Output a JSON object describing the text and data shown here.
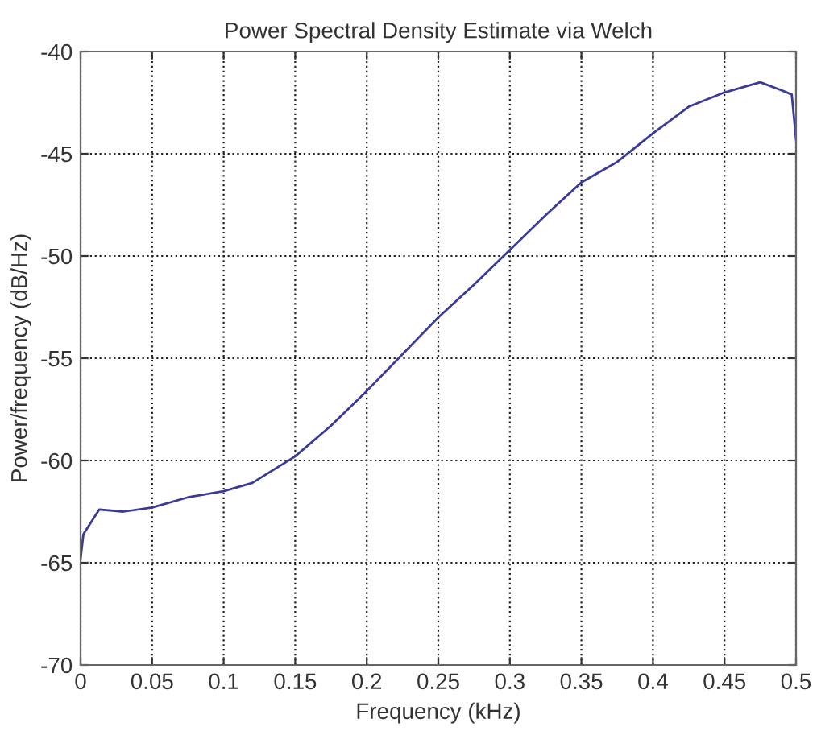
{
  "chart_data": {
    "type": "line",
    "title": "Power Spectral Density Estimate via Welch",
    "xlabel": "Frequency (kHz)",
    "ylabel": "Power/frequency (dB/Hz)",
    "x": [
      0,
      0.002,
      0.013,
      0.03,
      0.05,
      0.075,
      0.1,
      0.12,
      0.15,
      0.175,
      0.2,
      0.225,
      0.25,
      0.275,
      0.3,
      0.325,
      0.35,
      0.375,
      0.4,
      0.425,
      0.45,
      0.475,
      0.49,
      0.497,
      0.5
    ],
    "series": [
      {
        "color": "#3a3a9a",
        "values": [
          -64.8,
          -63.6,
          -62.4,
          -62.5,
          -62.3,
          -61.8,
          -61.5,
          -61.1,
          -59.8,
          -58.3,
          -56.6,
          -54.8,
          -53.0,
          -51.4,
          -49.7,
          -48.0,
          -46.4,
          -45.4,
          -44.0,
          -42.7,
          -42.0,
          -41.5,
          -41.9,
          -42.1,
          -44.3
        ]
      }
    ],
    "xlim": [
      0,
      0.5
    ],
    "ylim": [
      -70,
      -40
    ],
    "xticks": [
      0,
      0.05,
      0.1,
      0.15,
      0.2,
      0.25,
      0.3,
      0.35,
      0.4,
      0.45,
      0.5
    ],
    "yticks": [
      -70,
      -65,
      -60,
      -55,
      -50,
      -45,
      -40
    ],
    "grid": true,
    "line_style": "solid",
    "marker": "none"
  }
}
